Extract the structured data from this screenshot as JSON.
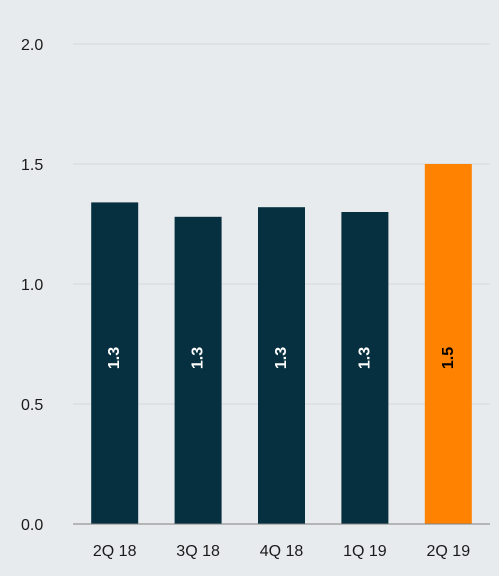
{
  "chart_data": {
    "type": "bar",
    "categories": [
      "2Q 18",
      "3Q 18",
      "4Q 18",
      "1Q 19",
      "2Q 19"
    ],
    "values": [
      1.34,
      1.28,
      1.32,
      1.3,
      1.5
    ],
    "data_labels": [
      "1.3",
      "1.3",
      "1.3",
      "1.3",
      "1.5"
    ],
    "ylim": [
      0,
      2.0
    ],
    "yticks": [
      0.0,
      0.5,
      1.0,
      1.5,
      2.0
    ],
    "ytick_labels": [
      "0.0",
      "0.5",
      "1.0",
      "1.5",
      "2.0"
    ],
    "grid": true,
    "colors": {
      "bar": "#06303f",
      "highlight": "#ff8200",
      "label_on_dark": "#ffffff",
      "label_on_highlight": "#000000",
      "grid": "#d3d8dd",
      "axis": "#7f7f7f"
    },
    "highlight_index": 4
  }
}
